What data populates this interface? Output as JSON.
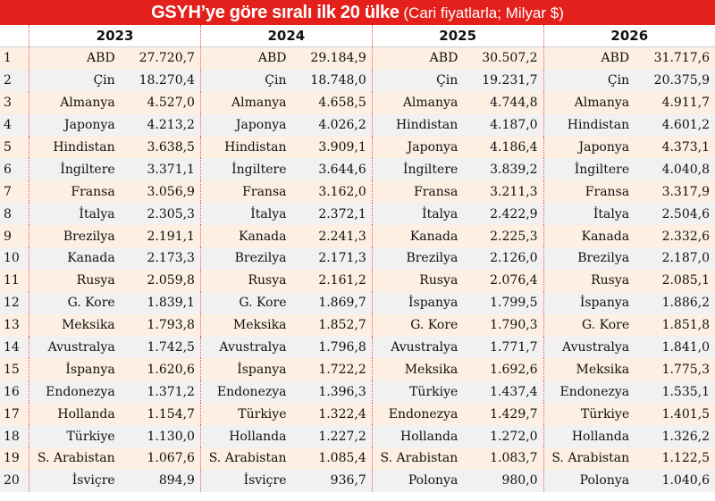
{
  "title": {
    "bold": "GSYH’ye göre sıralı ilk 20 ülke",
    "sub": " (Cari fiyatlarla; Milyar $)"
  },
  "years": [
    "2023",
    "2024",
    "2025",
    "2026"
  ],
  "rows": [
    {
      "rank": "1",
      "cols": [
        [
          "ABD",
          "27.720,7"
        ],
        [
          "ABD",
          "29.184,9"
        ],
        [
          "ABD",
          "30.507,2"
        ],
        [
          "ABD",
          "31.717,6"
        ]
      ]
    },
    {
      "rank": "2",
      "cols": [
        [
          "Çin",
          "18.270,4"
        ],
        [
          "Çin",
          "18.748,0"
        ],
        [
          "Çin",
          "19.231,7"
        ],
        [
          "Çin",
          "20.375,9"
        ]
      ]
    },
    {
      "rank": "3",
      "cols": [
        [
          "Almanya",
          "4.527,0"
        ],
        [
          "Almanya",
          "4.658,5"
        ],
        [
          "Almanya",
          "4.744,8"
        ],
        [
          "Almanya",
          "4.911,7"
        ]
      ]
    },
    {
      "rank": "4",
      "cols": [
        [
          "Japonya",
          "4.213,2"
        ],
        [
          "Japonya",
          "4.026,2"
        ],
        [
          "Hindistan",
          "4.187,0"
        ],
        [
          "Hindistan",
          "4.601,2"
        ]
      ]
    },
    {
      "rank": "5",
      "cols": [
        [
          "Hindistan",
          "3.638,5"
        ],
        [
          "Hindistan",
          "3.909,1"
        ],
        [
          "Japonya",
          "4.186,4"
        ],
        [
          "Japonya",
          "4.373,1"
        ]
      ]
    },
    {
      "rank": "6",
      "cols": [
        [
          "İngiltere",
          "3.371,1"
        ],
        [
          "İngiltere",
          "3.644,6"
        ],
        [
          "İngiltere",
          "3.839,2"
        ],
        [
          "İngiltere",
          "4.040,8"
        ]
      ]
    },
    {
      "rank": "7",
      "cols": [
        [
          "Fransa",
          "3.056,9"
        ],
        [
          "Fransa",
          "3.162,0"
        ],
        [
          "Fransa",
          "3.211,3"
        ],
        [
          "Fransa",
          "3.317,9"
        ]
      ]
    },
    {
      "rank": "8",
      "cols": [
        [
          "İtalya",
          "2.305,3"
        ],
        [
          "İtalya",
          "2.372,1"
        ],
        [
          "İtalya",
          "2.422,9"
        ],
        [
          "İtalya",
          "2.504,6"
        ]
      ]
    },
    {
      "rank": "9",
      "cols": [
        [
          "Brezilya",
          "2.191,1"
        ],
        [
          "Kanada",
          "2.241,3"
        ],
        [
          "Kanada",
          "2.225,3"
        ],
        [
          "Kanada",
          "2.332,6"
        ]
      ]
    },
    {
      "rank": "10",
      "cols": [
        [
          "Kanada",
          "2.173,3"
        ],
        [
          "Brezilya",
          "2.171,3"
        ],
        [
          "Brezilya",
          "2.126,0"
        ],
        [
          "Brezilya",
          "2.187,0"
        ]
      ]
    },
    {
      "rank": "11",
      "cols": [
        [
          "Rusya",
          "2.059,8"
        ],
        [
          "Rusya",
          "2.161,2"
        ],
        [
          "Rusya",
          "2.076,4"
        ],
        [
          "Rusya",
          "2.085,1"
        ]
      ]
    },
    {
      "rank": "12",
      "cols": [
        [
          "G. Kore",
          "1.839,1"
        ],
        [
          "G. Kore",
          "1.869,7"
        ],
        [
          "İspanya",
          "1.799,5"
        ],
        [
          "İspanya",
          "1.886,2"
        ]
      ]
    },
    {
      "rank": "13",
      "cols": [
        [
          "Meksika",
          "1.793,8"
        ],
        [
          "Meksika",
          "1.852,7"
        ],
        [
          "G. Kore",
          "1.790,3"
        ],
        [
          "G. Kore",
          "1.851,8"
        ]
      ]
    },
    {
      "rank": "14",
      "cols": [
        [
          "Avustralya",
          "1.742,5"
        ],
        [
          "Avustralya",
          "1.796,8"
        ],
        [
          "Avustralya",
          "1.771,7"
        ],
        [
          "Avustralya",
          "1.841,0"
        ]
      ]
    },
    {
      "rank": "15",
      "cols": [
        [
          "İspanya",
          "1.620,6"
        ],
        [
          "İspanya",
          "1.722,2"
        ],
        [
          "Meksika",
          "1.692,6"
        ],
        [
          "Meksika",
          "1.775,3"
        ]
      ]
    },
    {
      "rank": "16",
      "cols": [
        [
          "Endonezya",
          "1.371,2"
        ],
        [
          "Endonezya",
          "1.396,3"
        ],
        [
          "Türkiye",
          "1.437,4"
        ],
        [
          "Endonezya",
          "1.535,1"
        ]
      ]
    },
    {
      "rank": "17",
      "cols": [
        [
          "Hollanda",
          "1.154,7"
        ],
        [
          "Türkiye",
          "1.322,4"
        ],
        [
          "Endonezya",
          "1.429,7"
        ],
        [
          "Türkiye",
          "1.401,5"
        ]
      ]
    },
    {
      "rank": "18",
      "cols": [
        [
          "Türkiye",
          "1.130,0"
        ],
        [
          "Hollanda",
          "1.227,2"
        ],
        [
          "Hollanda",
          "1.272,0"
        ],
        [
          "Hollanda",
          "1.326,2"
        ]
      ]
    },
    {
      "rank": "19",
      "cols": [
        [
          "S. Arabistan",
          "1.067,6"
        ],
        [
          "S. Arabistan",
          "1.085,4"
        ],
        [
          "S. Arabistan",
          "1.083,7"
        ],
        [
          "S. Arabistan",
          "1.122,5"
        ]
      ]
    },
    {
      "rank": "20",
      "cols": [
        [
          "İsviçre",
          "894,9"
        ],
        [
          "İsviçre",
          "936,7"
        ],
        [
          "Polonya",
          "980,0"
        ],
        [
          "Polonya",
          "1.040,6"
        ]
      ]
    }
  ]
}
